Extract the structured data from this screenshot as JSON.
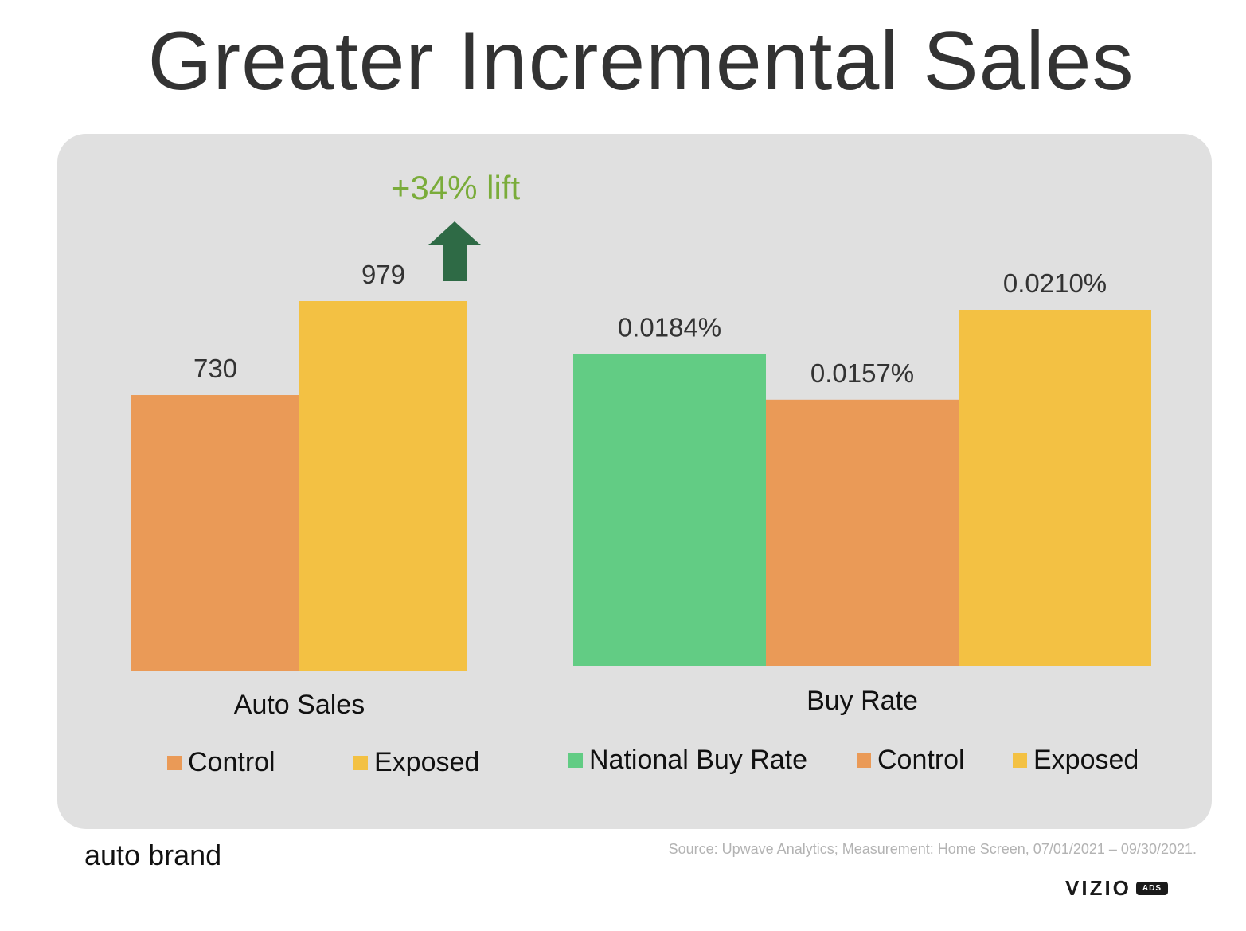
{
  "title": "Greater Incremental Sales",
  "colors": {
    "national": "#62cc84",
    "control": "#ea9a57",
    "exposed": "#f3c143",
    "lift": "#7aac3a",
    "arrow": "#2e6a45",
    "panel": "#e0e0e0"
  },
  "lift_label": "+34% lift",
  "chart_data": [
    {
      "type": "bar",
      "category": "Auto Sales",
      "series": [
        {
          "name": "Control",
          "value": 730,
          "label": "730",
          "color_key": "control"
        },
        {
          "name": "Exposed",
          "value": 979,
          "label": "979",
          "color_key": "exposed"
        }
      ],
      "annotation": "+34% lift"
    },
    {
      "type": "bar",
      "category": "Buy Rate",
      "series": [
        {
          "name": "National Buy Rate",
          "value": 0.0184,
          "label": "0.0184%",
          "color_key": "national"
        },
        {
          "name": "Control",
          "value": 0.0157,
          "label": "0.0157%",
          "color_key": "control"
        },
        {
          "name": "Exposed",
          "value": 0.021,
          "label": "0.0210%",
          "color_key": "exposed"
        }
      ]
    }
  ],
  "legends": {
    "left": [
      "Control",
      "Exposed"
    ],
    "right": [
      "National Buy Rate",
      "Control",
      "Exposed"
    ]
  },
  "footer": {
    "brand": "auto brand",
    "source": "Source: Upwave Analytics; Measurement: Home Screen, 07/01/2021 – 09/30/2021.",
    "logo_word": "VIZIO",
    "logo_badge": "ADS"
  }
}
